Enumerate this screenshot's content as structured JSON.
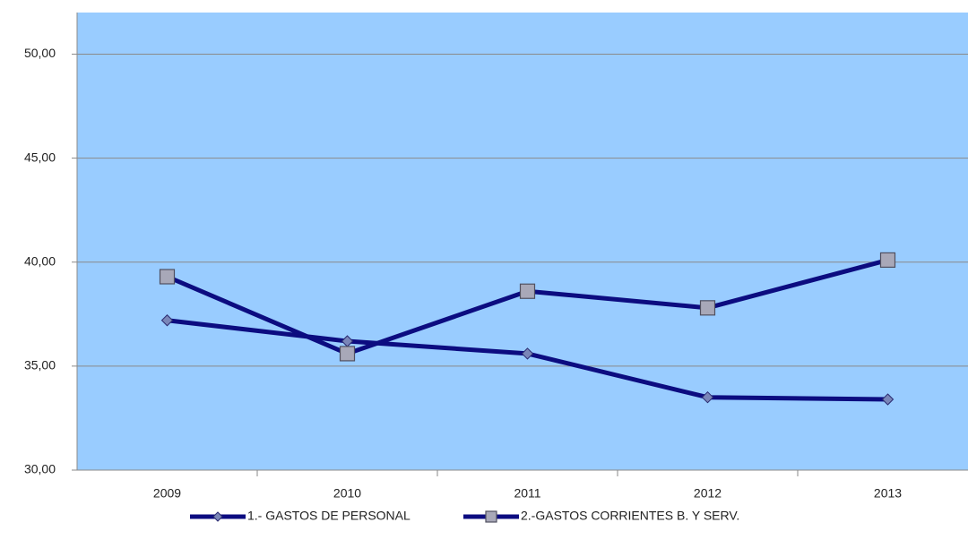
{
  "chart_data": {
    "type": "line",
    "categories": [
      "2009",
      "2010",
      "2011",
      "2012",
      "2013"
    ],
    "series": [
      {
        "name": "1.- GASTOS DE PERSONAL",
        "color": "#0c0c80",
        "marker": "diamond",
        "values": [
          37.2,
          36.2,
          35.6,
          33.5,
          33.4
        ]
      },
      {
        "name": "2.-GASTOS CORRIENTES B. Y SERV.",
        "color": "#0c0c80",
        "marker": "square",
        "values": [
          39.3,
          35.6,
          38.6,
          37.8,
          40.1
        ]
      }
    ],
    "ylim": [
      30,
      52
    ],
    "yticks": [
      {
        "value": 30,
        "label": "30,00"
      },
      {
        "value": 35,
        "label": "35,00"
      },
      {
        "value": 40,
        "label": "40,00"
      },
      {
        "value": 45,
        "label": "45,00"
      },
      {
        "value": 50,
        "label": "50,00"
      }
    ],
    "grid": true,
    "background": "#99ccff",
    "legend": "bottom"
  }
}
